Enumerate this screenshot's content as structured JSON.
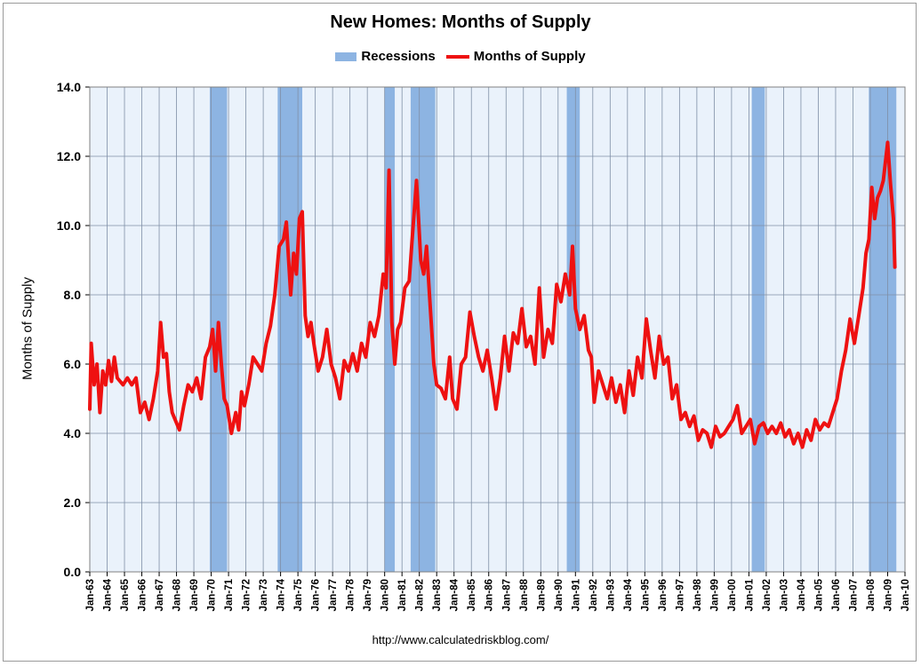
{
  "chart_data": {
    "type": "line",
    "title": "New Homes: Months of Supply",
    "ylabel": "Months of Supply",
    "xlabel": "",
    "source": "http://www.calculatedriskblog.com/",
    "ylim": [
      0,
      14
    ],
    "xlim": [
      "Jan-63",
      "Jan-10"
    ],
    "y_ticks": [
      "0.0",
      "2.0",
      "4.0",
      "6.0",
      "8.0",
      "10.0",
      "12.0",
      "14.0"
    ],
    "x_ticks": [
      "Jan-63",
      "Jan-64",
      "Jan-65",
      "Jan-66",
      "Jan-67",
      "Jan-68",
      "Jan-69",
      "Jan-70",
      "Jan-71",
      "Jan-72",
      "Jan-73",
      "Jan-74",
      "Jan-75",
      "Jan-76",
      "Jan-77",
      "Jan-78",
      "Jan-79",
      "Jan-80",
      "Jan-81",
      "Jan-82",
      "Jan-83",
      "Jan-84",
      "Jan-85",
      "Jan-86",
      "Jan-87",
      "Jan-88",
      "Jan-89",
      "Jan-90",
      "Jan-91",
      "Jan-92",
      "Jan-93",
      "Jan-94",
      "Jan-95",
      "Jan-96",
      "Jan-97",
      "Jan-98",
      "Jan-99",
      "Jan-00",
      "Jan-01",
      "Jan-02",
      "Jan-03",
      "Jan-04",
      "Jan-05",
      "Jan-06",
      "Jan-07",
      "Jan-08",
      "Jan-09",
      "Jan-10"
    ],
    "grid": true,
    "legend_position": "top-center",
    "legend": [
      "Recessions",
      "Months of Supply"
    ],
    "colors": {
      "line": "#ee1111",
      "recession": "#8db4e2",
      "plot_bg": "#eaf2fb",
      "grid": "#7f8fa6"
    },
    "recessions": [
      {
        "start": "Dec-69",
        "end": "Nov-70"
      },
      {
        "start": "Nov-73",
        "end": "Mar-75"
      },
      {
        "start": "Jan-80",
        "end": "Jul-80"
      },
      {
        "start": "Jul-81",
        "end": "Nov-82"
      },
      {
        "start": "Jul-90",
        "end": "Mar-91"
      },
      {
        "start": "Mar-01",
        "end": "Nov-01"
      },
      {
        "start": "Dec-07",
        "end": "Jun-09"
      }
    ],
    "series": [
      {
        "name": "Months of Supply",
        "points": [
          [
            "Jan-63",
            4.7
          ],
          [
            "Feb-63",
            6.6
          ],
          [
            "Apr-63",
            5.4
          ],
          [
            "Jun-63",
            6.0
          ],
          [
            "Aug-63",
            4.6
          ],
          [
            "Oct-63",
            5.8
          ],
          [
            "Dec-63",
            5.4
          ],
          [
            "Feb-64",
            6.1
          ],
          [
            "Apr-64",
            5.5
          ],
          [
            "Jun-64",
            6.2
          ],
          [
            "Aug-64",
            5.6
          ],
          [
            "Dec-64",
            5.4
          ],
          [
            "Mar-65",
            5.6
          ],
          [
            "Jun-65",
            5.4
          ],
          [
            "Sep-65",
            5.6
          ],
          [
            "Dec-65",
            4.6
          ],
          [
            "Mar-66",
            4.9
          ],
          [
            "Jun-66",
            4.4
          ],
          [
            "Sep-66",
            5.0
          ],
          [
            "Dec-66",
            5.8
          ],
          [
            "Feb-67",
            7.2
          ],
          [
            "Apr-67",
            6.2
          ],
          [
            "Jun-67",
            6.3
          ],
          [
            "Aug-67",
            5.2
          ],
          [
            "Oct-67",
            4.6
          ],
          [
            "Dec-67",
            4.4
          ],
          [
            "Mar-68",
            4.1
          ],
          [
            "Jun-68",
            4.8
          ],
          [
            "Sep-68",
            5.4
          ],
          [
            "Dec-68",
            5.2
          ],
          [
            "Mar-69",
            5.6
          ],
          [
            "Jun-69",
            5.0
          ],
          [
            "Sep-69",
            6.2
          ],
          [
            "Dec-69",
            6.5
          ],
          [
            "Feb-70",
            7.0
          ],
          [
            "Apr-70",
            5.8
          ],
          [
            "Jun-70",
            7.2
          ],
          [
            "Aug-70",
            6.0
          ],
          [
            "Oct-70",
            5.0
          ],
          [
            "Dec-70",
            4.8
          ],
          [
            "Mar-71",
            4.0
          ],
          [
            "Jun-71",
            4.6
          ],
          [
            "Aug-71",
            4.1
          ],
          [
            "Oct-71",
            5.2
          ],
          [
            "Dec-71",
            4.8
          ],
          [
            "Mar-72",
            5.4
          ],
          [
            "Jun-72",
            6.2
          ],
          [
            "Sep-72",
            6.0
          ],
          [
            "Dec-72",
            5.8
          ],
          [
            "Mar-73",
            6.6
          ],
          [
            "Jun-73",
            7.1
          ],
          [
            "Sep-73",
            8.0
          ],
          [
            "Dec-73",
            9.4
          ],
          [
            "Mar-74",
            9.6
          ],
          [
            "May-74",
            10.1
          ],
          [
            "Aug-74",
            8.0
          ],
          [
            "Oct-74",
            9.2
          ],
          [
            "Dec-74",
            8.6
          ],
          [
            "Feb-75",
            10.2
          ],
          [
            "Apr-75",
            10.4
          ],
          [
            "Jun-75",
            7.4
          ],
          [
            "Aug-75",
            6.8
          ],
          [
            "Oct-75",
            7.2
          ],
          [
            "Dec-75",
            6.6
          ],
          [
            "Mar-76",
            5.8
          ],
          [
            "Jun-76",
            6.2
          ],
          [
            "Sep-76",
            7.0
          ],
          [
            "Dec-76",
            6.0
          ],
          [
            "Mar-77",
            5.6
          ],
          [
            "Jun-77",
            5.0
          ],
          [
            "Sep-77",
            6.1
          ],
          [
            "Dec-77",
            5.8
          ],
          [
            "Mar-78",
            6.3
          ],
          [
            "Jun-78",
            5.8
          ],
          [
            "Sep-78",
            6.6
          ],
          [
            "Dec-78",
            6.2
          ],
          [
            "Mar-79",
            7.2
          ],
          [
            "Jun-79",
            6.8
          ],
          [
            "Sep-79",
            7.4
          ],
          [
            "Dec-79",
            8.6
          ],
          [
            "Feb-80",
            8.2
          ],
          [
            "Apr-80",
            11.6
          ],
          [
            "Jun-80",
            7.2
          ],
          [
            "Aug-80",
            6.0
          ],
          [
            "Oct-80",
            7.0
          ],
          [
            "Dec-80",
            7.2
          ],
          [
            "Mar-81",
            8.2
          ],
          [
            "Jun-81",
            8.4
          ],
          [
            "Aug-81",
            9.6
          ],
          [
            "Nov-81",
            11.3
          ],
          [
            "Feb-82",
            9.0
          ],
          [
            "Apr-82",
            8.6
          ],
          [
            "Jun-82",
            9.4
          ],
          [
            "Aug-82",
            8.0
          ],
          [
            "Nov-82",
            6.0
          ],
          [
            "Jan-83",
            5.4
          ],
          [
            "Apr-83",
            5.3
          ],
          [
            "Jul-83",
            5.0
          ],
          [
            "Oct-83",
            6.2
          ],
          [
            "Dec-83",
            5.0
          ],
          [
            "Mar-84",
            4.7
          ],
          [
            "Jun-84",
            6.0
          ],
          [
            "Sep-84",
            6.2
          ],
          [
            "Dec-84",
            7.5
          ],
          [
            "Mar-85",
            6.8
          ],
          [
            "Jun-85",
            6.2
          ],
          [
            "Sep-85",
            5.8
          ],
          [
            "Dec-85",
            6.4
          ],
          [
            "Mar-86",
            5.6
          ],
          [
            "Jun-86",
            4.7
          ],
          [
            "Sep-86",
            5.6
          ],
          [
            "Dec-86",
            6.8
          ],
          [
            "Mar-87",
            5.8
          ],
          [
            "Jun-87",
            6.9
          ],
          [
            "Sep-87",
            6.6
          ],
          [
            "Dec-87",
            7.6
          ],
          [
            "Mar-88",
            6.5
          ],
          [
            "Jun-88",
            6.8
          ],
          [
            "Sep-88",
            6.0
          ],
          [
            "Dec-88",
            8.2
          ],
          [
            "Mar-89",
            6.2
          ],
          [
            "Jun-89",
            7.0
          ],
          [
            "Sep-89",
            6.6
          ],
          [
            "Dec-89",
            8.3
          ],
          [
            "Mar-90",
            7.8
          ],
          [
            "Jun-90",
            8.6
          ],
          [
            "Sep-90",
            8.0
          ],
          [
            "Nov-90",
            9.4
          ],
          [
            "Jan-91",
            7.6
          ],
          [
            "Apr-91",
            7.0
          ],
          [
            "Jul-91",
            7.4
          ],
          [
            "Oct-91",
            6.4
          ],
          [
            "Dec-91",
            6.2
          ],
          [
            "Feb-92",
            4.9
          ],
          [
            "May-92",
            5.8
          ],
          [
            "Aug-92",
            5.4
          ],
          [
            "Nov-92",
            5.0
          ],
          [
            "Feb-93",
            5.6
          ],
          [
            "May-93",
            4.9
          ],
          [
            "Aug-93",
            5.4
          ],
          [
            "Nov-93",
            4.6
          ],
          [
            "Feb-94",
            5.8
          ],
          [
            "May-94",
            5.1
          ],
          [
            "Aug-94",
            6.2
          ],
          [
            "Nov-94",
            5.6
          ],
          [
            "Feb-95",
            7.3
          ],
          [
            "May-95",
            6.4
          ],
          [
            "Aug-95",
            5.6
          ],
          [
            "Nov-95",
            6.8
          ],
          [
            "Feb-96",
            6.0
          ],
          [
            "May-96",
            6.2
          ],
          [
            "Aug-96",
            5.0
          ],
          [
            "Nov-96",
            5.4
          ],
          [
            "Feb-97",
            4.4
          ],
          [
            "May-97",
            4.6
          ],
          [
            "Aug-97",
            4.2
          ],
          [
            "Nov-97",
            4.5
          ],
          [
            "Feb-98",
            3.8
          ],
          [
            "May-98",
            4.1
          ],
          [
            "Aug-98",
            4.0
          ],
          [
            "Nov-98",
            3.6
          ],
          [
            "Feb-99",
            4.2
          ],
          [
            "May-99",
            3.9
          ],
          [
            "Aug-99",
            4.0
          ],
          [
            "Nov-99",
            4.2
          ],
          [
            "Feb-00",
            4.4
          ],
          [
            "May-00",
            4.8
          ],
          [
            "Aug-00",
            4.0
          ],
          [
            "Nov-00",
            4.2
          ],
          [
            "Feb-01",
            4.4
          ],
          [
            "May-01",
            3.7
          ],
          [
            "Aug-01",
            4.2
          ],
          [
            "Nov-01",
            4.3
          ],
          [
            "Feb-02",
            4.0
          ],
          [
            "May-02",
            4.2
          ],
          [
            "Aug-02",
            4.0
          ],
          [
            "Nov-02",
            4.3
          ],
          [
            "Feb-03",
            3.9
          ],
          [
            "May-03",
            4.1
          ],
          [
            "Aug-03",
            3.7
          ],
          [
            "Nov-03",
            4.0
          ],
          [
            "Feb-04",
            3.6
          ],
          [
            "May-04",
            4.1
          ],
          [
            "Aug-04",
            3.8
          ],
          [
            "Nov-04",
            4.4
          ],
          [
            "Feb-05",
            4.1
          ],
          [
            "May-05",
            4.3
          ],
          [
            "Aug-05",
            4.2
          ],
          [
            "Nov-05",
            4.6
          ],
          [
            "Feb-06",
            5.0
          ],
          [
            "May-06",
            5.8
          ],
          [
            "Aug-06",
            6.4
          ],
          [
            "Nov-06",
            7.3
          ],
          [
            "Feb-07",
            6.6
          ],
          [
            "May-07",
            7.4
          ],
          [
            "Aug-07",
            8.2
          ],
          [
            "Oct-07",
            9.2
          ],
          [
            "Dec-07",
            9.6
          ],
          [
            "Feb-08",
            11.1
          ],
          [
            "Apr-08",
            10.2
          ],
          [
            "Jun-08",
            10.8
          ],
          [
            "Aug-08",
            11.0
          ],
          [
            "Oct-08",
            11.3
          ],
          [
            "Jan-09",
            12.4
          ],
          [
            "Mar-09",
            11.2
          ],
          [
            "May-09",
            10.2
          ],
          [
            "Jun-09",
            8.8
          ]
        ]
      }
    ]
  }
}
